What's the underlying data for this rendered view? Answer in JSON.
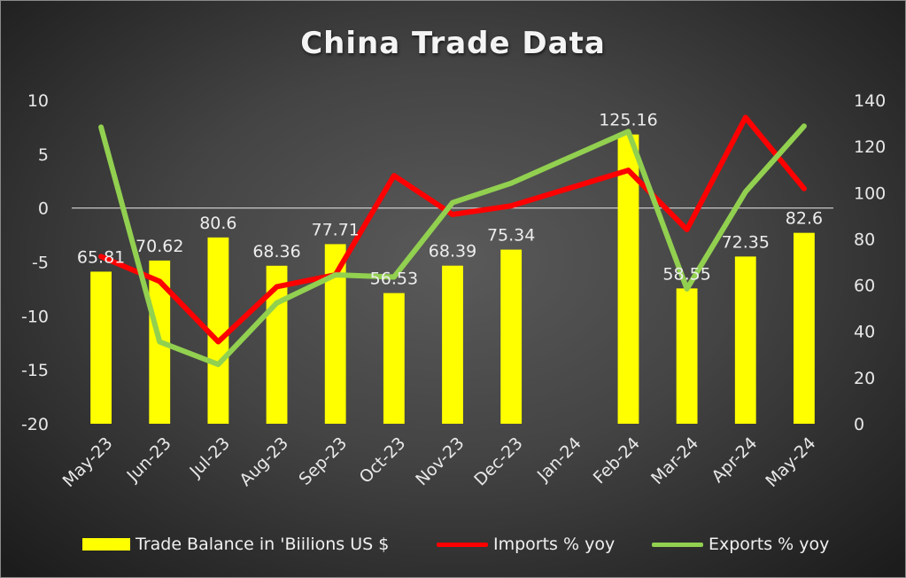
{
  "chart_data": {
    "type": "bar",
    "title": "China Trade Data",
    "categories": [
      "May-23",
      "Jun-23",
      "Jul-23",
      "Aug-23",
      "Sep-23",
      "Oct-23",
      "Nov-23",
      "Dec-23",
      "Jan-24",
      "Feb-24",
      "Mar-24",
      "Apr-24",
      "May-24"
    ],
    "left_axis": {
      "ticks": [
        10,
        5,
        0,
        -5,
        -10,
        -15,
        -20
      ],
      "ylim": [
        -20,
        10
      ]
    },
    "right_axis": {
      "ticks": [
        140,
        120,
        100,
        80,
        60,
        40,
        20,
        0
      ],
      "ylim": [
        0,
        140
      ]
    },
    "grid": false,
    "legend_position": "bottom",
    "series": [
      {
        "name": "Trade Balance in 'Biilions US $",
        "kind": "bar",
        "axis": "right",
        "color": "#ffff00",
        "values": [
          65.81,
          70.62,
          80.6,
          68.36,
          77.71,
          56.53,
          68.39,
          75.34,
          null,
          125.16,
          58.55,
          72.35,
          82.6
        ],
        "labels": [
          "65.81",
          "70.62",
          "80.6",
          "68.36",
          "77.71",
          "56.53",
          "68.39",
          "75.34",
          "",
          "125.16",
          "58.55",
          "72.35",
          "82.6"
        ]
      },
      {
        "name": "Imports % yoy",
        "kind": "line",
        "axis": "left",
        "color": "#ff0000",
        "values": [
          -4.5,
          -6.8,
          -12.4,
          -7.3,
          -6.2,
          3.0,
          -0.6,
          0.2,
          null,
          3.5,
          -2.0,
          8.4,
          1.8
        ]
      },
      {
        "name": "Exports % yoy",
        "kind": "line",
        "axis": "left",
        "color": "#92d050",
        "values": [
          7.5,
          -12.4,
          -14.5,
          -8.8,
          -6.2,
          -6.4,
          0.5,
          2.3,
          null,
          7.1,
          -7.5,
          1.5,
          7.6
        ]
      }
    ]
  }
}
